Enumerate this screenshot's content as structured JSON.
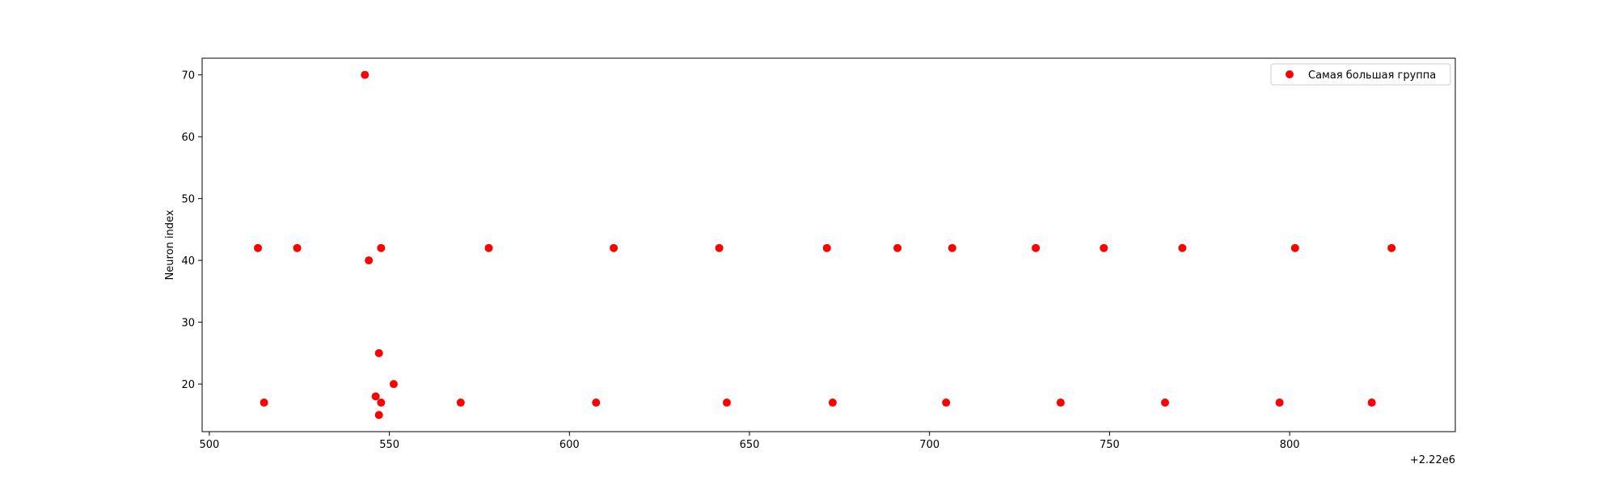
{
  "chart_data": {
    "type": "scatter",
    "title": "",
    "xlabel": "",
    "ylabel": "Neuron index",
    "x_offset_label": "+2.22e6",
    "xlim": [
      498,
      846
    ],
    "ylim": [
      12.3,
      72.7
    ],
    "xticks": [
      500,
      550,
      600,
      650,
      700,
      750,
      800
    ],
    "yticks": [
      20,
      30,
      40,
      50,
      60,
      70
    ],
    "grid": false,
    "legend_position": "top-right",
    "series": [
      {
        "name": "Самая большая группа",
        "color": "#ff0000",
        "points": [
          {
            "x": 513.5,
            "y": 42
          },
          {
            "x": 515.2,
            "y": 17
          },
          {
            "x": 524.4,
            "y": 42
          },
          {
            "x": 543.2,
            "y": 70
          },
          {
            "x": 544.3,
            "y": 40
          },
          {
            "x": 546.2,
            "y": 18
          },
          {
            "x": 547.1,
            "y": 25
          },
          {
            "x": 547.1,
            "y": 15
          },
          {
            "x": 547.7,
            "y": 17
          },
          {
            "x": 547.7,
            "y": 42
          },
          {
            "x": 551.2,
            "y": 20
          },
          {
            "x": 569.8,
            "y": 17
          },
          {
            "x": 577.6,
            "y": 42
          },
          {
            "x": 607.4,
            "y": 17
          },
          {
            "x": 612.3,
            "y": 42
          },
          {
            "x": 641.6,
            "y": 42
          },
          {
            "x": 643.7,
            "y": 17
          },
          {
            "x": 671.5,
            "y": 42
          },
          {
            "x": 673.1,
            "y": 17
          },
          {
            "x": 691.1,
            "y": 42
          },
          {
            "x": 704.6,
            "y": 17
          },
          {
            "x": 706.3,
            "y": 42
          },
          {
            "x": 729.5,
            "y": 42
          },
          {
            "x": 736.4,
            "y": 17
          },
          {
            "x": 748.4,
            "y": 42
          },
          {
            "x": 765.4,
            "y": 17
          },
          {
            "x": 770.2,
            "y": 42
          },
          {
            "x": 797.2,
            "y": 17
          },
          {
            "x": 801.5,
            "y": 42
          },
          {
            "x": 822.8,
            "y": 17
          },
          {
            "x": 828.3,
            "y": 42
          }
        ]
      }
    ]
  }
}
